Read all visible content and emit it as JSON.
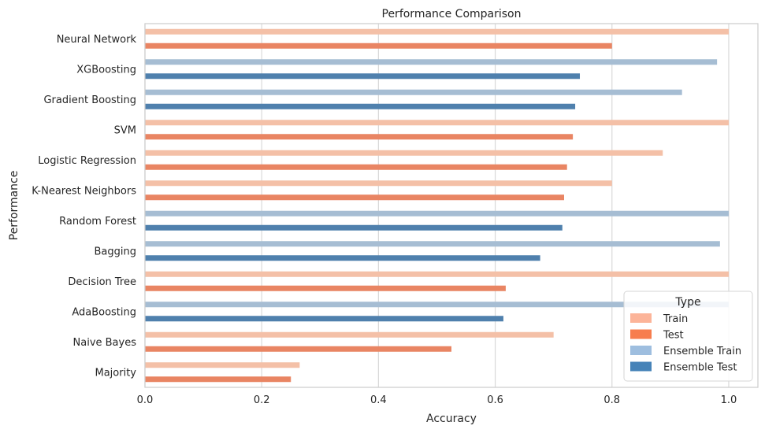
{
  "chart_data": {
    "type": "bar",
    "orientation": "horizontal",
    "title": "Performance Comparison",
    "xlabel": "Accuracy",
    "ylabel": "Performance",
    "xlim": [
      0,
      1.05
    ],
    "x_ticks": [
      "0.0",
      "0.2",
      "0.4",
      "0.6",
      "0.8",
      "1.0"
    ],
    "x_tick_values": [
      0,
      0.2,
      0.4,
      0.6,
      0.8,
      1.0
    ],
    "grid": "vertical",
    "categories": [
      "Neural Network",
      "XGBoosting",
      "Gradient Boosting",
      "SVM",
      "Logistic Regression",
      "K-Nearest Neighbors",
      "Random Forest",
      "Bagging",
      "Decision Tree",
      "AdaBoosting",
      "Naive Bayes",
      "Majority"
    ],
    "bars": [
      {
        "category": "Neural Network",
        "train": 1.0,
        "test": 0.8,
        "kind": "base"
      },
      {
        "category": "XGBoosting",
        "train": 0.98,
        "test": 0.745,
        "kind": "ensemble"
      },
      {
        "category": "Gradient Boosting",
        "train": 0.92,
        "test": 0.737,
        "kind": "ensemble"
      },
      {
        "category": "SVM",
        "train": 1.0,
        "test": 0.733,
        "kind": "base"
      },
      {
        "category": "Logistic Regression",
        "train": 0.887,
        "test": 0.723,
        "kind": "base"
      },
      {
        "category": "K-Nearest Neighbors",
        "train": 0.8,
        "test": 0.718,
        "kind": "base"
      },
      {
        "category": "Random Forest",
        "train": 1.0,
        "test": 0.715,
        "kind": "ensemble"
      },
      {
        "category": "Bagging",
        "train": 0.985,
        "test": 0.677,
        "kind": "ensemble"
      },
      {
        "category": "Decision Tree",
        "train": 1.0,
        "test": 0.618,
        "kind": "base"
      },
      {
        "category": "AdaBoosting",
        "train": 1.0,
        "test": 0.614,
        "kind": "ensemble"
      },
      {
        "category": "Naive Bayes",
        "train": 0.7,
        "test": 0.525,
        "kind": "base"
      },
      {
        "category": "Majority",
        "train": 0.265,
        "test": 0.25,
        "kind": "base"
      }
    ],
    "colors": {
      "train": "#f4c0a7",
      "test": "#e98563",
      "ensemble_train": "#a6bdd3",
      "ensemble_test": "#4f80ad",
      "legend_train": "#fcb499",
      "legend_test": "#f77d4e",
      "legend_ensemble_train": "#9ebedf",
      "legend_ensemble_test": "#4683b8"
    },
    "legend": {
      "title": "Type",
      "placement": "lower-right",
      "entries": [
        {
          "label": "Train",
          "color_key": "legend_train"
        },
        {
          "label": "Test",
          "color_key": "legend_test"
        },
        {
          "label": "Ensemble Train",
          "color_key": "legend_ensemble_train"
        },
        {
          "label": "Ensemble Test",
          "color_key": "legend_ensemble_test"
        }
      ]
    }
  }
}
